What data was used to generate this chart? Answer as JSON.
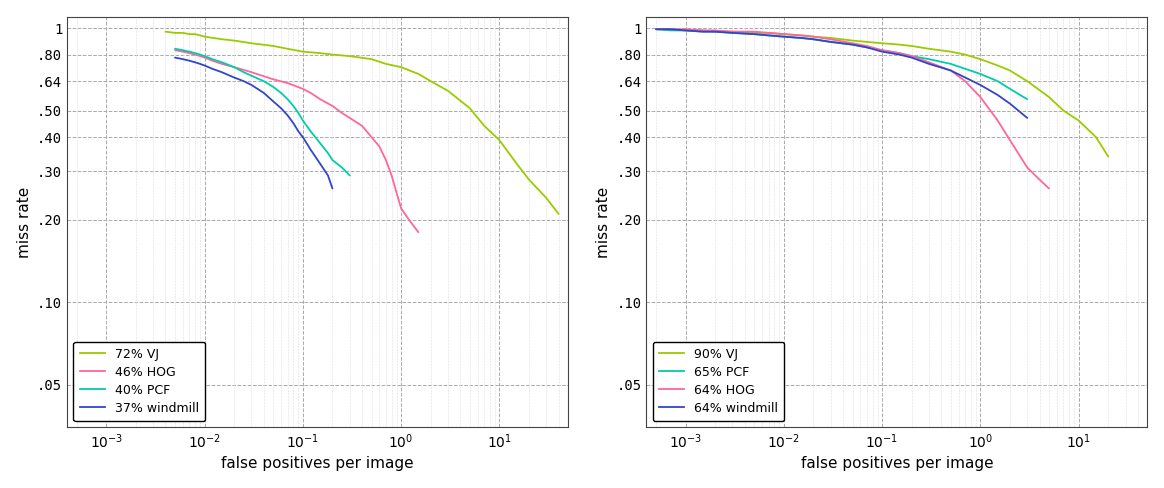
{
  "plot1": {
    "xlabel": "false positives per image",
    "ylabel": "miss rate",
    "xlim": [
      0.0004,
      50
    ],
    "curves": [
      {
        "label": "72% VJ",
        "color": "#99cc00",
        "x": [
          0.004,
          0.005,
          0.006,
          0.007,
          0.008,
          0.009,
          0.01,
          0.015,
          0.02,
          0.03,
          0.05,
          0.07,
          0.1,
          0.15,
          0.2,
          0.3,
          0.5,
          0.7,
          1.0,
          1.5,
          2.0,
          3.0,
          5.0,
          7.0,
          10.0,
          15.0,
          20.0,
          30.0,
          40.0
        ],
        "y": [
          0.97,
          0.96,
          0.96,
          0.95,
          0.95,
          0.94,
          0.93,
          0.91,
          0.9,
          0.88,
          0.86,
          0.84,
          0.82,
          0.81,
          0.8,
          0.79,
          0.77,
          0.74,
          0.72,
          0.68,
          0.64,
          0.59,
          0.51,
          0.44,
          0.39,
          0.32,
          0.28,
          0.24,
          0.21
        ]
      },
      {
        "label": "46% HOG",
        "color": "#ff6699",
        "x": [
          0.005,
          0.006,
          0.007,
          0.008,
          0.009,
          0.01,
          0.012,
          0.015,
          0.02,
          0.03,
          0.05,
          0.07,
          0.1,
          0.12,
          0.15,
          0.2,
          0.25,
          0.3,
          0.4,
          0.5,
          0.6,
          0.7,
          0.8,
          0.9,
          1.0,
          1.2,
          1.5
        ],
        "y": [
          0.83,
          0.82,
          0.81,
          0.8,
          0.79,
          0.78,
          0.76,
          0.74,
          0.72,
          0.69,
          0.65,
          0.63,
          0.6,
          0.58,
          0.55,
          0.52,
          0.49,
          0.47,
          0.44,
          0.4,
          0.37,
          0.33,
          0.29,
          0.25,
          0.22,
          0.2,
          0.18
        ]
      },
      {
        "label": "40% PCF",
        "color": "#00ccaa",
        "x": [
          0.005,
          0.006,
          0.007,
          0.008,
          0.009,
          0.01,
          0.012,
          0.015,
          0.02,
          0.025,
          0.03,
          0.04,
          0.05,
          0.06,
          0.07,
          0.08,
          0.09,
          0.1,
          0.12,
          0.15,
          0.18,
          0.2,
          0.25,
          0.3
        ],
        "y": [
          0.84,
          0.83,
          0.82,
          0.81,
          0.8,
          0.79,
          0.77,
          0.75,
          0.72,
          0.69,
          0.67,
          0.64,
          0.61,
          0.58,
          0.55,
          0.52,
          0.49,
          0.46,
          0.42,
          0.38,
          0.35,
          0.33,
          0.31,
          0.29
        ]
      },
      {
        "label": "37% windmill",
        "color": "#3344cc",
        "x": [
          0.005,
          0.006,
          0.007,
          0.008,
          0.009,
          0.01,
          0.012,
          0.015,
          0.02,
          0.025,
          0.03,
          0.04,
          0.05,
          0.06,
          0.07,
          0.08,
          0.09,
          0.1,
          0.12,
          0.15,
          0.18,
          0.2
        ],
        "y": [
          0.78,
          0.77,
          0.76,
          0.75,
          0.74,
          0.73,
          0.71,
          0.69,
          0.66,
          0.64,
          0.62,
          0.58,
          0.54,
          0.51,
          0.48,
          0.45,
          0.42,
          0.4,
          0.36,
          0.32,
          0.29,
          0.26
        ]
      }
    ]
  },
  "plot2": {
    "xlabel": "false positives per image",
    "ylabel": "miss rate",
    "xlim": [
      0.0004,
      50
    ],
    "curves": [
      {
        "label": "90% VJ",
        "color": "#99cc00",
        "x": [
          0.0005,
          0.0007,
          0.001,
          0.0015,
          0.002,
          0.003,
          0.005,
          0.007,
          0.01,
          0.015,
          0.02,
          0.03,
          0.05,
          0.07,
          0.1,
          0.15,
          0.2,
          0.3,
          0.5,
          0.7,
          1.0,
          1.5,
          2.0,
          3.0,
          5.0,
          7.0,
          10.0,
          15.0,
          20.0
        ],
        "y": [
          0.99,
          0.99,
          0.98,
          0.98,
          0.97,
          0.97,
          0.96,
          0.96,
          0.95,
          0.94,
          0.93,
          0.92,
          0.9,
          0.89,
          0.88,
          0.87,
          0.86,
          0.84,
          0.82,
          0.8,
          0.77,
          0.73,
          0.7,
          0.64,
          0.56,
          0.5,
          0.46,
          0.4,
          0.34
        ]
      },
      {
        "label": "65% PCF",
        "color": "#00ccaa",
        "x": [
          0.0005,
          0.0007,
          0.001,
          0.0015,
          0.002,
          0.003,
          0.005,
          0.007,
          0.01,
          0.015,
          0.02,
          0.03,
          0.05,
          0.07,
          0.1,
          0.15,
          0.2,
          0.3,
          0.5,
          0.7,
          1.0,
          1.5,
          2.0,
          3.0
        ],
        "y": [
          0.99,
          0.98,
          0.98,
          0.97,
          0.97,
          0.96,
          0.95,
          0.94,
          0.93,
          0.92,
          0.91,
          0.89,
          0.87,
          0.85,
          0.83,
          0.81,
          0.79,
          0.77,
          0.74,
          0.71,
          0.68,
          0.64,
          0.6,
          0.55
        ]
      },
      {
        "label": "64% HOG",
        "color": "#ff6699",
        "x": [
          0.0005,
          0.0007,
          0.001,
          0.0015,
          0.002,
          0.003,
          0.005,
          0.007,
          0.01,
          0.015,
          0.02,
          0.03,
          0.05,
          0.07,
          0.1,
          0.15,
          0.2,
          0.3,
          0.5,
          0.7,
          1.0,
          1.5,
          2.0,
          3.0,
          4.0,
          5.0
        ],
        "y": [
          0.99,
          0.99,
          0.99,
          0.98,
          0.98,
          0.97,
          0.97,
          0.96,
          0.95,
          0.94,
          0.93,
          0.91,
          0.88,
          0.86,
          0.83,
          0.81,
          0.79,
          0.75,
          0.7,
          0.64,
          0.56,
          0.46,
          0.39,
          0.31,
          0.28,
          0.26
        ]
      },
      {
        "label": "64% windmill",
        "color": "#3344cc",
        "x": [
          0.0005,
          0.0007,
          0.001,
          0.0015,
          0.002,
          0.003,
          0.005,
          0.007,
          0.01,
          0.015,
          0.02,
          0.03,
          0.05,
          0.07,
          0.1,
          0.15,
          0.2,
          0.3,
          0.5,
          0.7,
          1.0,
          1.5,
          2.0,
          3.0
        ],
        "y": [
          0.99,
          0.99,
          0.98,
          0.97,
          0.97,
          0.96,
          0.95,
          0.94,
          0.93,
          0.92,
          0.91,
          0.89,
          0.87,
          0.85,
          0.82,
          0.8,
          0.78,
          0.74,
          0.7,
          0.66,
          0.62,
          0.57,
          0.53,
          0.47
        ]
      }
    ]
  },
  "yticks": [
    0.05,
    0.1,
    0.2,
    0.3,
    0.4,
    0.5,
    0.64,
    0.8,
    1.0
  ],
  "ytick_labels": [
    ".05",
    ".10",
    ".20",
    ".30",
    ".40",
    ".50",
    ".64",
    ".80",
    "1"
  ],
  "xticks": [
    0.001,
    0.01,
    0.1,
    1.0,
    10.0
  ],
  "xtick_labels": [
    "10$^{-3}$",
    "10$^{-2}$",
    "10$^{-1}$",
    "10$^{0}$",
    "10$^{1}$"
  ],
  "background_color": "#ffffff",
  "grid_color": "#dddddd",
  "line_width": 1.3,
  "ylim": [
    0.035,
    1.1
  ]
}
